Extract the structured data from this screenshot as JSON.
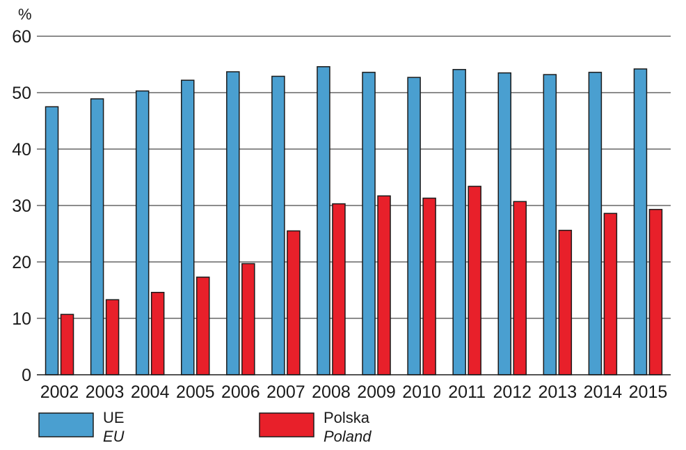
{
  "chart_data": {
    "type": "bar",
    "unit_label": "%",
    "categories": [
      "2002",
      "2003",
      "2004",
      "2005",
      "2006",
      "2007",
      "2008",
      "2009",
      "2010",
      "2011",
      "2012",
      "2013",
      "2014",
      "2015"
    ],
    "series": [
      {
        "name": "UE",
        "name_en": "EU",
        "color": "#4a9fd0",
        "values": [
          47.5,
          48.9,
          50.3,
          52.2,
          53.7,
          52.9,
          54.6,
          53.6,
          52.7,
          54.1,
          53.5,
          53.2,
          53.6,
          54.2
        ]
      },
      {
        "name": "Polska",
        "name_en": "Poland",
        "color": "#e8202a",
        "values": [
          10.7,
          13.3,
          14.6,
          17.3,
          19.7,
          25.5,
          30.3,
          31.7,
          31.3,
          33.4,
          30.7,
          25.6,
          28.6,
          29.3
        ]
      }
    ],
    "ylim": [
      0,
      60
    ],
    "yticks": [
      0,
      10,
      20,
      30,
      40,
      50,
      60
    ],
    "grid": true,
    "legend_position": "bottom"
  }
}
